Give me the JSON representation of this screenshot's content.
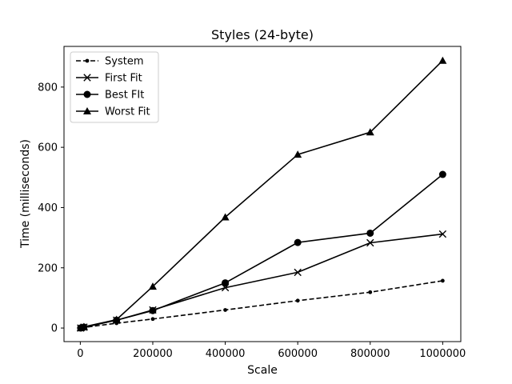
{
  "chart_data": {
    "type": "line",
    "title": "Styles (24-byte)",
    "xlabel": "Scale",
    "ylabel": "Time (milliseconds)",
    "xlim": [
      -45000,
      1050000
    ],
    "ylim": [
      -45,
      935
    ],
    "xticks": [
      0,
      200000,
      400000,
      600000,
      800000,
      1000000
    ],
    "xtick_labels": [
      "0",
      "200000",
      "400000",
      "600000",
      "800000",
      "1000000"
    ],
    "yticks": [
      0,
      200,
      400,
      600,
      800
    ],
    "ytick_labels": [
      "0",
      "200",
      "400",
      "600",
      "800"
    ],
    "grid": false,
    "legend_position": "upper left",
    "x": [
      1000,
      10000,
      100000,
      200000,
      400000,
      600000,
      800000,
      1000000
    ],
    "series": [
      {
        "name": "System",
        "linestyle": "dashed",
        "marker": "small-dot",
        "color": "#000000",
        "values": [
          0,
          2,
          16,
          30,
          60,
          91,
          119,
          157
        ]
      },
      {
        "name": "First Fit",
        "linestyle": "solid",
        "marker": "x",
        "color": "#000000",
        "values": [
          0,
          3,
          26,
          60,
          134,
          185,
          283,
          312
        ]
      },
      {
        "name": "Best FIt",
        "linestyle": "solid",
        "marker": "circle",
        "color": "#000000",
        "values": [
          0,
          3,
          26,
          58,
          150,
          284,
          315,
          510
        ]
      },
      {
        "name": "Worst Fit",
        "linestyle": "solid",
        "marker": "triangle",
        "color": "#000000",
        "values": [
          0,
          4,
          28,
          138,
          368,
          576,
          650,
          888
        ]
      }
    ]
  }
}
